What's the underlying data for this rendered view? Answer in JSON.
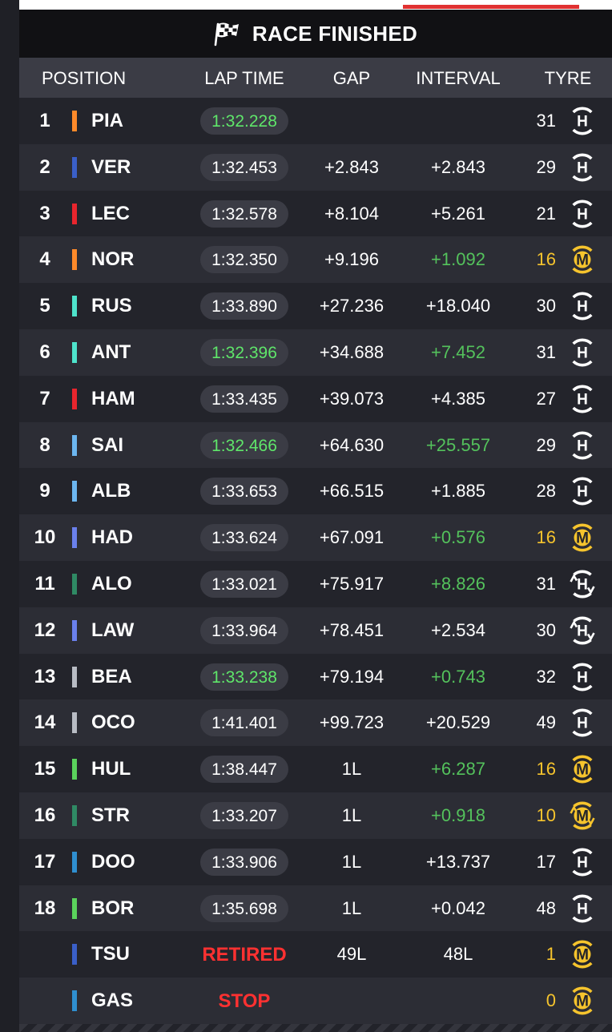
{
  "header": {
    "title": "RACE FINISHED",
    "columns": {
      "position": "POSITION",
      "lap_time": "LAP TIME",
      "gap": "GAP",
      "interval": "INTERVAL",
      "tyre": "TYRE"
    }
  },
  "colors": {
    "accent_bar": "#e03131",
    "fastest_lap_green": "#5fe66a",
    "interval_gain_green": "#54c25c",
    "medium_yellow": "#f6c42d",
    "hard_white": "#ffffff",
    "retired_red": "#ff3131"
  },
  "rows": [
    {
      "pos": "1",
      "driver": "PIA",
      "team_color": "#ff8a2a",
      "lap": "1:32.228",
      "lap_green": true,
      "gap": "",
      "interval": "",
      "interval_green": false,
      "tyre_laps": "31",
      "tyre": "hard",
      "tyre_icon": "hard-tyre-icon"
    },
    {
      "pos": "2",
      "driver": "VER",
      "team_color": "#3a5fc8",
      "lap": "1:32.453",
      "lap_green": false,
      "gap": "+2.843",
      "interval": "+2.843",
      "interval_green": false,
      "tyre_laps": "29",
      "tyre": "hard",
      "tyre_icon": "hard-tyre-icon"
    },
    {
      "pos": "3",
      "driver": "LEC",
      "team_color": "#e8252d",
      "lap": "1:32.578",
      "lap_green": false,
      "gap": "+8.104",
      "interval": "+5.261",
      "interval_green": false,
      "tyre_laps": "21",
      "tyre": "hard",
      "tyre_icon": "hard-tyre-icon"
    },
    {
      "pos": "4",
      "driver": "NOR",
      "team_color": "#ff8a2a",
      "lap": "1:32.350",
      "lap_green": false,
      "gap": "+9.196",
      "interval": "+1.092",
      "interval_green": true,
      "tyre_laps": "16",
      "tyre": "medium",
      "tyre_icon": "medium-tyre-icon"
    },
    {
      "pos": "5",
      "driver": "RUS",
      "team_color": "#4ee4cc",
      "lap": "1:33.890",
      "lap_green": false,
      "gap": "+27.236",
      "interval": "+18.040",
      "interval_green": false,
      "tyre_laps": "30",
      "tyre": "hard",
      "tyre_icon": "hard-tyre-icon"
    },
    {
      "pos": "6",
      "driver": "ANT",
      "team_color": "#4ee4cc",
      "lap": "1:32.396",
      "lap_green": true,
      "gap": "+34.688",
      "interval": "+7.452",
      "interval_green": true,
      "tyre_laps": "31",
      "tyre": "hard",
      "tyre_icon": "hard-tyre-icon"
    },
    {
      "pos": "7",
      "driver": "HAM",
      "team_color": "#e8252d",
      "lap": "1:33.435",
      "lap_green": false,
      "gap": "+39.073",
      "interval": "+4.385",
      "interval_green": false,
      "tyre_laps": "27",
      "tyre": "hard",
      "tyre_icon": "hard-tyre-icon"
    },
    {
      "pos": "8",
      "driver": "SAI",
      "team_color": "#6cb6f0",
      "lap": "1:32.466",
      "lap_green": true,
      "gap": "+64.630",
      "interval": "+25.557",
      "interval_green": true,
      "tyre_laps": "29",
      "tyre": "hard",
      "tyre_icon": "hard-tyre-icon"
    },
    {
      "pos": "9",
      "driver": "ALB",
      "team_color": "#6cb6f0",
      "lap": "1:33.653",
      "lap_green": false,
      "gap": "+66.515",
      "interval": "+1.885",
      "interval_green": false,
      "tyre_laps": "28",
      "tyre": "hard",
      "tyre_icon": "hard-tyre-icon"
    },
    {
      "pos": "10",
      "driver": "HAD",
      "team_color": "#6a80ec",
      "lap": "1:33.624",
      "lap_green": false,
      "gap": "+67.091",
      "interval": "+0.576",
      "interval_green": true,
      "tyre_laps": "16",
      "tyre": "medium",
      "tyre_icon": "medium-tyre-icon"
    },
    {
      "pos": "11",
      "driver": "ALO",
      "team_color": "#2f8a64",
      "lap": "1:33.021",
      "lap_green": false,
      "gap": "+75.917",
      "interval": "+8.826",
      "interval_green": true,
      "tyre_laps": "31",
      "tyre": "hard-used",
      "tyre_icon": "hard-used-tyre-icon"
    },
    {
      "pos": "12",
      "driver": "LAW",
      "team_color": "#6a80ec",
      "lap": "1:33.964",
      "lap_green": false,
      "gap": "+78.451",
      "interval": "+2.534",
      "interval_green": false,
      "tyre_laps": "30",
      "tyre": "hard-used",
      "tyre_icon": "hard-used-tyre-icon"
    },
    {
      "pos": "13",
      "driver": "BEA",
      "team_color": "#b8bcc4",
      "lap": "1:33.238",
      "lap_green": true,
      "gap": "+79.194",
      "interval": "+0.743",
      "interval_green": true,
      "tyre_laps": "32",
      "tyre": "hard",
      "tyre_icon": "hard-tyre-icon"
    },
    {
      "pos": "14",
      "driver": "OCO",
      "team_color": "#b8bcc4",
      "lap": "1:41.401",
      "lap_green": false,
      "gap": "+99.723",
      "interval": "+20.529",
      "interval_green": false,
      "tyre_laps": "49",
      "tyre": "hard",
      "tyre_icon": "hard-tyre-icon"
    },
    {
      "pos": "15",
      "driver": "HUL",
      "team_color": "#5ad35c",
      "lap": "1:38.447",
      "lap_green": false,
      "gap": "1L",
      "interval": "+6.287",
      "interval_green": true,
      "tyre_laps": "16",
      "tyre": "medium",
      "tyre_icon": "medium-tyre-icon"
    },
    {
      "pos": "16",
      "driver": "STR",
      "team_color": "#2f8a64",
      "lap": "1:33.207",
      "lap_green": false,
      "gap": "1L",
      "interval": "+0.918",
      "interval_green": true,
      "tyre_laps": "10",
      "tyre": "medium-used",
      "tyre_icon": "medium-used-tyre-icon"
    },
    {
      "pos": "17",
      "driver": "DOO",
      "team_color": "#2f8fd0",
      "lap": "1:33.906",
      "lap_green": false,
      "gap": "1L",
      "interval": "+13.737",
      "interval_green": false,
      "tyre_laps": "17",
      "tyre": "hard",
      "tyre_icon": "hard-tyre-icon"
    },
    {
      "pos": "18",
      "driver": "BOR",
      "team_color": "#5ad35c",
      "lap": "1:35.698",
      "lap_green": false,
      "gap": "1L",
      "interval": "+0.042",
      "interval_green": false,
      "tyre_laps": "48",
      "tyre": "hard",
      "tyre_icon": "hard-tyre-icon"
    },
    {
      "pos": "",
      "driver": "TSU",
      "team_color": "#3a5fc8",
      "lap": "RETIRED",
      "lap_status": true,
      "lap_green": false,
      "gap": "49L",
      "interval": "48L",
      "interval_green": false,
      "tyre_laps": "1",
      "tyre": "medium",
      "tyre_icon": "medium-tyre-icon"
    },
    {
      "pos": "",
      "driver": "GAS",
      "team_color": "#2f8fd0",
      "lap": "STOP",
      "lap_status": true,
      "lap_green": false,
      "gap": "",
      "interval": "",
      "interval_green": false,
      "tyre_laps": "0",
      "tyre": "medium",
      "tyre_icon": "medium-tyre-icon"
    }
  ]
}
